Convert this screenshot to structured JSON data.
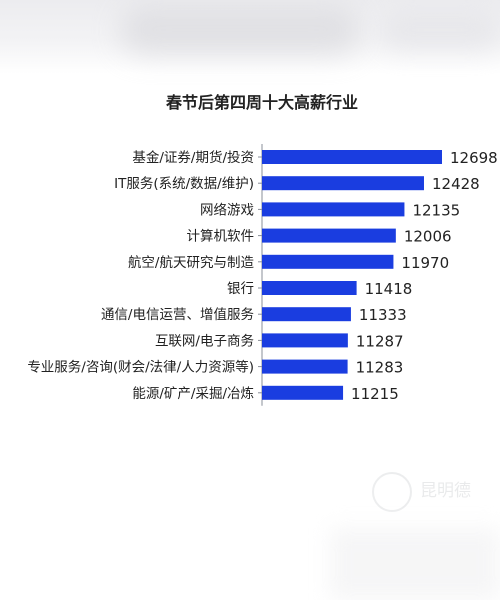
{
  "chart_data": {
    "type": "bar",
    "orientation": "horizontal",
    "title": "春节后第四周十大高薪行业",
    "categories": [
      "基金/证券/期货/投资",
      "IT服务(系统/数据/维护)",
      "网络游戏",
      "计算机软件",
      "航空/航天研究与制造",
      "银行",
      "通信/电信运营、增值服务",
      "互联网/电子商务",
      "专业服务/咨询(财会/法律/人力资源等)",
      "能源/矿产/采掘/冶炼"
    ],
    "values": [
      12698,
      12428,
      12135,
      12006,
      11970,
      11418,
      11333,
      11287,
      11283,
      11215
    ],
    "bar_color": "#1a3de0",
    "axis_color": "#8a8f99",
    "grid": false,
    "legend": "none"
  },
  "watermark": {
    "text": "昆明德"
  }
}
